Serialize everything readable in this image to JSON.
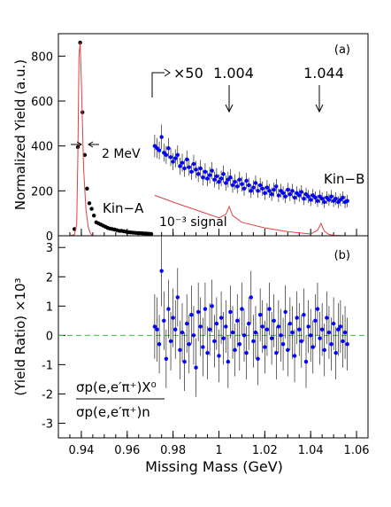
{
  "chart_data": [
    {
      "panel": "(a)",
      "type": "scatter",
      "xlabel": "",
      "ylabel": "Normalized Yield (a.u.)",
      "xlim": [
        0.93,
        1.065
      ],
      "ylim": [
        0,
        900
      ],
      "yticks": [
        0,
        200,
        400,
        600,
        800
      ],
      "xticks": [
        0.94,
        0.96,
        0.98,
        1,
        1.02,
        1.04,
        1.06
      ],
      "annotations": {
        "scale": "×50",
        "peak1": "1.004",
        "peak2": "1.044",
        "width": "2 MeV",
        "kin_a": "Kin−A",
        "kin_b": "Kin−B",
        "signal": "10⁻³ signal"
      },
      "series": [
        {
          "name": "Kin-A",
          "color": "#000000",
          "x": [
            0.937,
            0.9385,
            0.9395,
            0.9405,
            0.9415,
            0.9425,
            0.9435,
            0.9445,
            0.9455,
            0.9465,
            0.9475,
            0.9485,
            0.9495,
            0.9505,
            0.9515,
            0.9525,
            0.9535,
            0.9545,
            0.9555,
            0.9565,
            0.9575,
            0.9585,
            0.9595,
            0.9605,
            0.9615,
            0.9625,
            0.9635,
            0.9645,
            0.9655,
            0.9665,
            0.9675,
            0.9685,
            0.9695,
            0.9705
          ],
          "y": [
            30,
            395,
            860,
            550,
            360,
            210,
            145,
            120,
            90,
            60,
            55,
            50,
            45,
            40,
            35,
            32,
            30,
            28,
            25,
            22,
            22,
            20,
            18,
            16,
            15,
            14,
            13,
            12,
            12,
            11,
            10,
            10,
            9,
            8
          ]
        },
        {
          "name": "Kin-A peak curve",
          "color": "#e04040",
          "x": [
            0.935,
            0.937,
            0.938,
            0.9385,
            0.939,
            0.9395,
            0.94,
            0.9405,
            0.941,
            0.942,
            0.943,
            0.944,
            0.945
          ],
          "y": [
            0,
            5,
            50,
            350,
            800,
            860,
            700,
            500,
            300,
            120,
            40,
            10,
            0
          ]
        },
        {
          "name": "Kin-B ×50",
          "color": "#0000ff",
          "x": [
            0.972,
            0.973,
            0.974,
            0.975,
            0.976,
            0.977,
            0.978,
            0.979,
            0.98,
            0.981,
            0.982,
            0.983,
            0.984,
            0.985,
            0.986,
            0.987,
            0.988,
            0.989,
            0.99,
            0.991,
            0.992,
            0.993,
            0.994,
            0.995,
            0.996,
            0.997,
            0.998,
            0.999,
            1.0,
            1.001,
            1.002,
            1.003,
            1.004,
            1.005,
            1.006,
            1.007,
            1.008,
            1.009,
            1.01,
            1.011,
            1.012,
            1.013,
            1.014,
            1.015,
            1.016,
            1.017,
            1.018,
            1.019,
            1.02,
            1.021,
            1.022,
            1.023,
            1.024,
            1.025,
            1.026,
            1.027,
            1.028,
            1.029,
            1.03,
            1.031,
            1.032,
            1.033,
            1.034,
            1.035,
            1.036,
            1.037,
            1.038,
            1.039,
            1.04,
            1.041,
            1.042,
            1.043,
            1.044,
            1.045,
            1.046,
            1.047,
            1.048,
            1.049,
            1.05,
            1.051,
            1.052,
            1.053,
            1.054,
            1.055,
            1.056
          ],
          "y": [
            400,
            390,
            380,
            440,
            370,
            360,
            390,
            350,
            330,
            345,
            360,
            310,
            325,
            300,
            340,
            305,
            285,
            320,
            295,
            275,
            300,
            260,
            285,
            255,
            270,
            290,
            250,
            265,
            240,
            255,
            275,
            235,
            250,
            260,
            225,
            240,
            220,
            250,
            230,
            210,
            245,
            225,
            200,
            215,
            235,
            200,
            225,
            210,
            190,
            215,
            200,
            185,
            205,
            220,
            180,
            200,
            190,
            175,
            205,
            185,
            200,
            170,
            190,
            180,
            195,
            165,
            185,
            175,
            160,
            180,
            170,
            155,
            175,
            165,
            150,
            170,
            160,
            175,
            155,
            165,
            150,
            160,
            170,
            150,
            155
          ],
          "err": [
            50,
            45,
            40,
            55,
            40,
            40,
            45,
            40,
            38,
            40,
            42,
            38,
            40,
            38,
            40,
            38,
            36,
            40,
            38,
            36,
            38,
            35,
            38,
            35,
            36,
            38,
            35,
            36,
            34,
            35,
            38,
            34,
            35,
            36,
            33,
            34,
            32,
            35,
            33,
            32,
            35,
            33,
            31,
            32,
            34,
            31,
            33,
            32,
            30,
            33,
            31,
            30,
            32,
            33,
            30,
            31,
            30,
            29,
            31,
            30,
            31,
            29,
            30,
            29,
            30,
            28,
            29,
            29,
            28,
            29,
            28,
            27,
            29,
            28,
            27,
            28,
            27,
            29,
            27,
            28,
            27,
            28,
            28,
            27,
            27
          ]
        },
        {
          "name": "10⁻³ signal",
          "color": "#e04040",
          "x": [
            0.972,
            0.98,
            0.99,
            1.0,
            1.003,
            1.0045,
            1.006,
            1.01,
            1.02,
            1.03,
            1.04,
            1.043,
            1.0445,
            1.046,
            1.048,
            1.05,
            1.056
          ],
          "y": [
            180,
            150,
            115,
            80,
            95,
            130,
            90,
            60,
            35,
            18,
            8,
            25,
            55,
            20,
            6,
            2,
            0
          ]
        }
      ]
    },
    {
      "panel": "(b)",
      "type": "scatter",
      "xlabel": "Missing Mass (GeV)",
      "ylabel": "(Yield Ratio) ×10³",
      "xlim": [
        0.93,
        1.065
      ],
      "ylim": [
        -3.5,
        3.4
      ],
      "yticks": [
        -3,
        -2,
        -1,
        0,
        1,
        2,
        3
      ],
      "xticks": [
        0.94,
        0.96,
        0.98,
        1,
        1.02,
        1.04,
        1.06
      ],
      "xtick_labels": [
        "0.94",
        "0.96",
        "0.98",
        "1",
        "1.02",
        "1.04",
        "1.06"
      ],
      "formula": {
        "numerator": "σp(e,e′π⁺)X⁰",
        "denominator": "σp(e,e′π⁺)n"
      },
      "series": [
        {
          "name": "ratio",
          "color": "#0000ff",
          "x": [
            0.972,
            0.973,
            0.974,
            0.975,
            0.976,
            0.977,
            0.978,
            0.979,
            0.98,
            0.981,
            0.982,
            0.983,
            0.984,
            0.985,
            0.986,
            0.987,
            0.988,
            0.989,
            0.99,
            0.991,
            0.992,
            0.993,
            0.994,
            0.995,
            0.996,
            0.997,
            0.998,
            0.999,
            1.0,
            1.001,
            1.002,
            1.003,
            1.004,
            1.005,
            1.006,
            1.007,
            1.008,
            1.009,
            1.01,
            1.011,
            1.012,
            1.013,
            1.014,
            1.015,
            1.016,
            1.017,
            1.018,
            1.019,
            1.02,
            1.021,
            1.022,
            1.023,
            1.024,
            1.025,
            1.026,
            1.027,
            1.028,
            1.029,
            1.03,
            1.031,
            1.032,
            1.033,
            1.034,
            1.035,
            1.036,
            1.037,
            1.038,
            1.039,
            1.04,
            1.041,
            1.042,
            1.043,
            1.044,
            1.045,
            1.046,
            1.047,
            1.048,
            1.049,
            1.05,
            1.051,
            1.052,
            1.053,
            1.054,
            1.055,
            1.056
          ],
          "y": [
            0.3,
            0.2,
            -0.3,
            2.2,
            0.5,
            -0.8,
            0.9,
            -0.2,
            0.6,
            0.2,
            1.3,
            -0.5,
            0.1,
            -0.9,
            0.4,
            -0.3,
            0.7,
            0.0,
            -1.1,
            0.8,
            0.3,
            -0.4,
            0.9,
            -0.6,
            0.2,
            1.0,
            -0.2,
            0.4,
            -0.7,
            0.6,
            -0.1,
            0.3,
            -0.9,
            0.8,
            0.1,
            -0.5,
            0.5,
            -0.3,
            0.9,
            0.0,
            -0.6,
            0.4,
            1.3,
            -0.2,
            0.1,
            -0.8,
            0.7,
            0.3,
            -0.4,
            0.2,
            0.9,
            -0.1,
            0.5,
            -0.6,
            0.3,
            0.0,
            -0.3,
            0.8,
            -0.5,
            0.4,
            0.1,
            -0.7,
            0.6,
            0.2,
            -0.2,
            0.7,
            -0.9,
            0.3,
            0.0,
            -0.4,
            0.5,
            0.9,
            -0.1,
            0.2,
            -0.5,
            0.6,
            0.1,
            -0.3,
            0.4,
            -0.6,
            0.2,
            0.3,
            -0.2,
            0.1,
            -0.3
          ],
          "err": [
            1.1,
            1.1,
            1.0,
            1.2,
            1.0,
            1.0,
            1.0,
            1.0,
            1.0,
            1.0,
            1.0,
            1.0,
            1.0,
            1.0,
            1.0,
            1.0,
            1.0,
            1.0,
            1.0,
            1.0,
            1.0,
            1.0,
            0.9,
            0.9,
            0.9,
            0.9,
            0.9,
            0.9,
            0.9,
            0.9,
            0.9,
            0.9,
            0.9,
            0.9,
            0.9,
            0.9,
            0.9,
            0.9,
            0.9,
            0.9,
            0.9,
            0.9,
            0.9,
            0.9,
            0.9,
            0.9,
            0.9,
            0.9,
            0.9,
            0.9,
            0.9,
            0.9,
            0.9,
            0.9,
            0.9,
            0.9,
            0.9,
            0.9,
            0.9,
            0.9,
            0.9,
            0.9,
            0.9,
            0.9,
            0.9,
            0.9,
            0.9,
            0.9,
            0.9,
            0.9,
            0.9,
            0.9,
            0.9,
            0.9,
            0.9,
            0.9,
            0.9,
            0.9,
            0.9,
            0.9,
            0.9,
            0.9,
            0.9,
            0.9,
            0.9
          ]
        }
      ],
      "reference_line": {
        "y": 0,
        "color": "#40c040",
        "style": "dashed"
      }
    }
  ]
}
